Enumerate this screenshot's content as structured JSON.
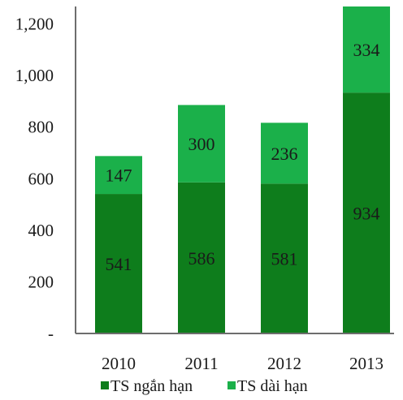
{
  "chart_data": {
    "type": "bar",
    "stacked": true,
    "categories": [
      "2010",
      "2011",
      "2012",
      "2013"
    ],
    "series": [
      {
        "name": "TS ngắn hạn",
        "values": [
          541,
          586,
          581,
          934
        ],
        "color": "#0e7d1c"
      },
      {
        "name": "TS dài hạn",
        "values": [
          147,
          300,
          236,
          334
        ],
        "color": "#1bb04a"
      }
    ],
    "ylim": [
      0,
      1268
    ],
    "yticks": [
      0,
      200,
      400,
      600,
      800,
      1000,
      1200
    ],
    "ytick_labels": [
      "-",
      "200",
      "400",
      "600",
      "800",
      "1,000",
      "1,200"
    ],
    "grid": false,
    "legend": "bottom"
  }
}
